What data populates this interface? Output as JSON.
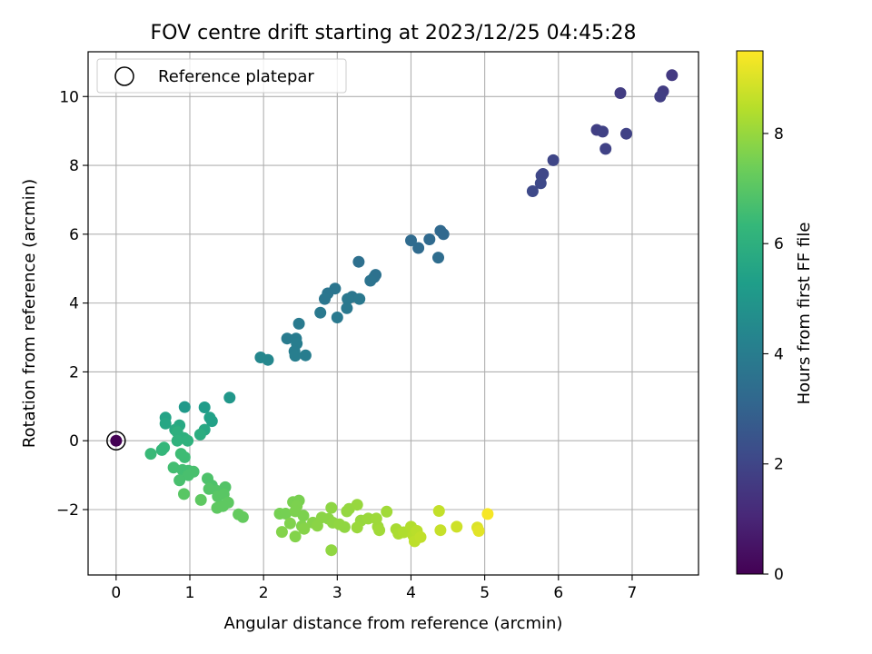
{
  "chart_data": {
    "type": "scatter",
    "title": "FOV centre drift starting at 2023/12/25 04:45:28",
    "xlabel": "Angular distance from reference (arcmin)",
    "ylabel": "Rotation from reference (arcmin)",
    "xlim": [
      -0.38,
      7.9
    ],
    "ylim": [
      -3.9,
      11.3
    ],
    "xticks": [
      "0",
      "1",
      "2",
      "3",
      "4",
      "5",
      "6",
      "7"
    ],
    "xtick_values": [
      0,
      1,
      2,
      3,
      4,
      5,
      6,
      7
    ],
    "yticks": [
      "−2",
      "0",
      "2",
      "4",
      "6",
      "8",
      "10"
    ],
    "ytick_values": [
      -2,
      0,
      2,
      4,
      6,
      8,
      10
    ],
    "grid": true,
    "legend": {
      "placement": "top-left",
      "entries": [
        "Reference platepar"
      ]
    },
    "reference_point": {
      "x": 0,
      "y": 0,
      "hours": 0
    },
    "colorbar": {
      "label": "Hours from first FF file",
      "min": 0,
      "max": 9.5,
      "ticks": [
        "0",
        "2",
        "4",
        "6",
        "8"
      ],
      "tick_values": [
        0,
        2,
        4,
        6,
        8
      ],
      "colormap": "viridis",
      "stops": [
        "#440154",
        "#482878",
        "#3e4989",
        "#31688e",
        "#26828e",
        "#1f9e89",
        "#35b779",
        "#6ece58",
        "#b5de2b",
        "#fde725"
      ]
    },
    "points": [
      [
        6.84,
        10.1,
        1.7
      ],
      [
        7.54,
        10.62,
        1.6
      ],
      [
        7.42,
        10.15,
        1.7
      ],
      [
        7.38,
        10.0,
        1.75
      ],
      [
        6.52,
        9.03,
        1.8
      ],
      [
        6.6,
        8.98,
        1.85
      ],
      [
        6.92,
        8.92,
        1.9
      ],
      [
        6.64,
        8.48,
        1.9
      ],
      [
        5.93,
        8.15,
        2.0
      ],
      [
        5.79,
        7.75,
        2.05
      ],
      [
        5.77,
        7.7,
        2.05
      ],
      [
        5.76,
        7.48,
        2.1
      ],
      [
        5.65,
        7.25,
        2.1
      ],
      [
        4.4,
        6.1,
        3.2
      ],
      [
        4.44,
        6.0,
        3.2
      ],
      [
        4.25,
        5.85,
        3.25
      ],
      [
        4.0,
        5.82,
        3.3
      ],
      [
        4.1,
        5.6,
        3.3
      ],
      [
        4.37,
        5.32,
        3.35
      ],
      [
        3.29,
        5.2,
        3.5
      ],
      [
        3.52,
        4.82,
        3.55
      ],
      [
        3.5,
        4.75,
        3.55
      ],
      [
        3.45,
        4.65,
        3.6
      ],
      [
        2.97,
        4.42,
        3.7
      ],
      [
        2.87,
        4.28,
        3.7
      ],
      [
        2.83,
        4.12,
        3.75
      ],
      [
        3.2,
        4.18,
        3.75
      ],
      [
        3.14,
        4.12,
        3.8
      ],
      [
        3.3,
        4.12,
        3.8
      ],
      [
        3.13,
        3.85,
        3.8
      ],
      [
        2.77,
        3.72,
        3.85
      ],
      [
        3.0,
        3.58,
        3.85
      ],
      [
        2.48,
        3.4,
        3.9
      ],
      [
        2.32,
        2.97,
        3.95
      ],
      [
        2.44,
        2.97,
        3.95
      ],
      [
        2.45,
        2.82,
        4.0
      ],
      [
        2.42,
        2.6,
        4.0
      ],
      [
        2.57,
        2.48,
        4.0
      ],
      [
        2.43,
        2.47,
        4.05
      ],
      [
        1.96,
        2.42,
        4.4
      ],
      [
        2.06,
        2.35,
        4.4
      ],
      [
        1.54,
        1.25,
        5.0
      ],
      [
        1.2,
        0.97,
        5.2
      ],
      [
        0.93,
        0.98,
        5.1
      ],
      [
        1.27,
        0.67,
        5.4
      ],
      [
        1.3,
        0.57,
        5.4
      ],
      [
        0.67,
        0.67,
        5.5
      ],
      [
        0.67,
        0.5,
        5.6
      ],
      [
        0.86,
        0.45,
        5.7
      ],
      [
        1.2,
        0.32,
        5.7
      ],
      [
        0.8,
        0.32,
        5.8
      ],
      [
        1.14,
        0.18,
        5.9
      ],
      [
        0.83,
        0.25,
        6.0
      ],
      [
        0.92,
        0.08,
        6.0
      ],
      [
        0.83,
        0.0,
        6.1
      ],
      [
        0.97,
        0.0,
        6.1
      ],
      [
        0.65,
        -0.2,
        6.3
      ],
      [
        0.62,
        -0.27,
        6.3
      ],
      [
        0.47,
        -0.38,
        6.4
      ],
      [
        0.88,
        -0.38,
        6.5
      ],
      [
        0.93,
        -0.48,
        6.5
      ],
      [
        0.78,
        -0.78,
        6.6
      ],
      [
        0.9,
        -0.85,
        6.6
      ],
      [
        0.98,
        -0.87,
        6.6
      ],
      [
        1.05,
        -0.9,
        6.7
      ],
      [
        0.98,
        -1.0,
        6.7
      ],
      [
        0.86,
        -1.15,
        6.7
      ],
      [
        1.24,
        -1.1,
        6.8
      ],
      [
        1.3,
        -1.3,
        6.8
      ],
      [
        1.26,
        -1.4,
        6.9
      ],
      [
        1.48,
        -1.35,
        6.9
      ],
      [
        1.37,
        -1.46,
        6.9
      ],
      [
        1.38,
        -1.62,
        7.0
      ],
      [
        1.46,
        -1.56,
        7.0
      ],
      [
        0.92,
        -1.55,
        7.0
      ],
      [
        1.15,
        -1.72,
        7.1
      ],
      [
        1.52,
        -1.8,
        7.1
      ],
      [
        1.37,
        -1.95,
        7.1
      ],
      [
        1.45,
        -1.9,
        7.1
      ],
      [
        1.66,
        -2.14,
        7.2
      ],
      [
        1.72,
        -2.22,
        7.2
      ],
      [
        2.22,
        -2.12,
        7.5
      ],
      [
        2.3,
        -2.12,
        7.5
      ],
      [
        2.4,
        -1.78,
        7.55
      ],
      [
        2.48,
        -1.74,
        7.55
      ],
      [
        2.45,
        -1.9,
        7.6
      ],
      [
        2.43,
        -2.05,
        7.6
      ],
      [
        2.54,
        -2.18,
        7.6
      ],
      [
        2.36,
        -2.4,
        7.65
      ],
      [
        2.52,
        -2.48,
        7.65
      ],
      [
        2.25,
        -2.65,
        7.7
      ],
      [
        2.43,
        -2.78,
        7.7
      ],
      [
        2.55,
        -2.56,
        7.75
      ],
      [
        2.67,
        -2.38,
        7.75
      ],
      [
        2.73,
        -2.47,
        7.8
      ],
      [
        2.88,
        -2.27,
        7.8
      ],
      [
        2.79,
        -2.23,
        7.8
      ],
      [
        2.94,
        -2.38,
        7.85
      ],
      [
        2.92,
        -1.95,
        7.85
      ],
      [
        3.03,
        -2.43,
        7.9
      ],
      [
        3.1,
        -2.51,
        7.9
      ],
      [
        3.13,
        -2.05,
        7.95
      ],
      [
        3.16,
        -1.98,
        7.95
      ],
      [
        3.27,
        -1.86,
        8.0
      ],
      [
        3.32,
        -2.32,
        8.0
      ],
      [
        3.42,
        -2.26,
        8.05
      ],
      [
        3.27,
        -2.52,
        8.05
      ],
      [
        3.53,
        -2.26,
        8.1
      ],
      [
        3.55,
        -2.5,
        8.1
      ],
      [
        3.57,
        -2.6,
        8.15
      ],
      [
        3.67,
        -2.06,
        8.15
      ],
      [
        2.92,
        -3.18,
        7.9
      ],
      [
        3.8,
        -2.57,
        8.25
      ],
      [
        3.83,
        -2.7,
        8.3
      ],
      [
        3.9,
        -2.66,
        8.35
      ],
      [
        4.0,
        -2.5,
        8.4
      ],
      [
        4.03,
        -2.75,
        8.45
      ],
      [
        4.08,
        -2.62,
        8.5
      ],
      [
        4.05,
        -2.92,
        8.55
      ],
      [
        4.13,
        -2.8,
        8.6
      ],
      [
        4.38,
        -2.04,
        8.65
      ],
      [
        4.4,
        -2.6,
        8.7
      ],
      [
        4.62,
        -2.5,
        8.8
      ],
      [
        4.9,
        -2.52,
        9.0
      ],
      [
        4.92,
        -2.62,
        9.1
      ],
      [
        5.04,
        -2.13,
        9.4
      ]
    ]
  }
}
